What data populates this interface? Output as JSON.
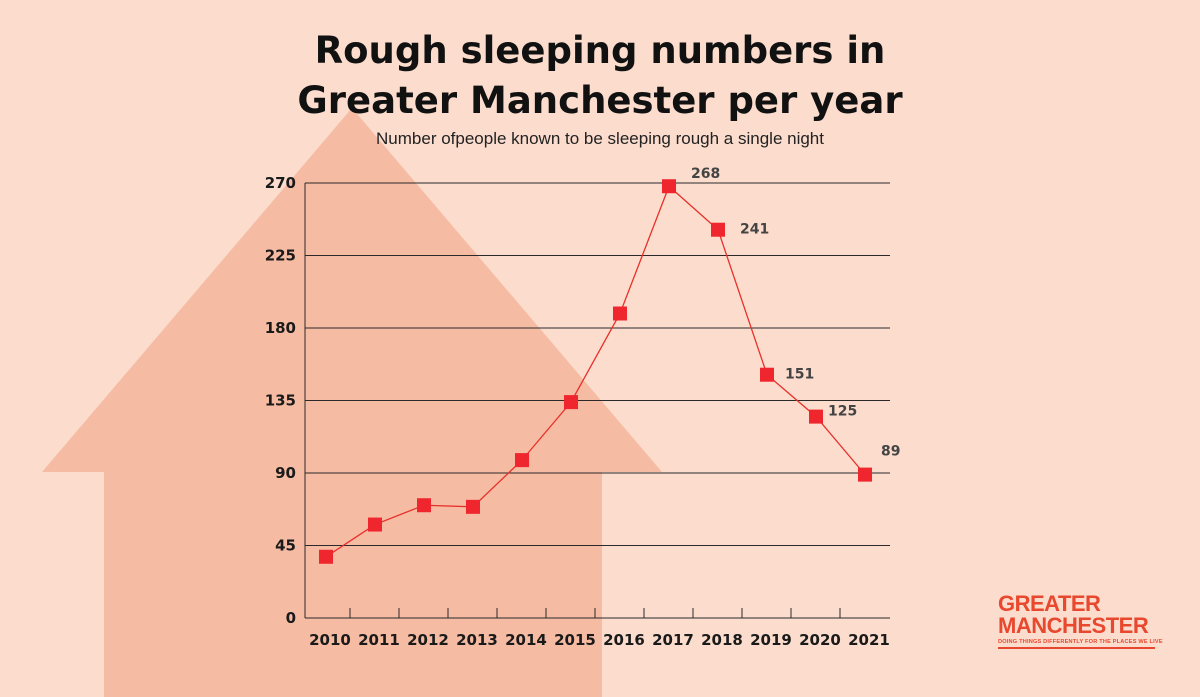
{
  "title_line1": "Rough sleeping numbers in",
  "title_line2": "Greater Manchester per year",
  "subtitle": "Number ofpeople known to be sleeping rough a single night",
  "logo": {
    "line1": "GREATER",
    "line2": "MANCHESTER",
    "tagline": "DOING THINGS DIFFERENTLY FOR THE PLACES WE LIVE",
    "color": "#e8482d"
  },
  "colors": {
    "background": "#fbdccd",
    "house": "#f6bba3",
    "series": "#e8302a",
    "marker": "#f0262e"
  },
  "chart_data": {
    "type": "line",
    "x": [
      "2010",
      "2011",
      "2012",
      "2013",
      "2014",
      "2015",
      "2016",
      "2017",
      "2018",
      "2019",
      "2020",
      "2021"
    ],
    "series": [
      {
        "values": [
          38,
          58,
          70,
          69,
          98,
          134,
          189,
          268,
          241,
          151,
          125,
          89
        ]
      }
    ],
    "data_labels": {
      "2017": "268",
      "2018": "241",
      "2019": "151",
      "2020": "125",
      "2021": "89"
    },
    "yticks": [
      0,
      45,
      90,
      135,
      180,
      225,
      270
    ],
    "ylim": [
      0,
      270
    ],
    "grid": "horizontal",
    "xlabel": "",
    "ylabel": ""
  }
}
